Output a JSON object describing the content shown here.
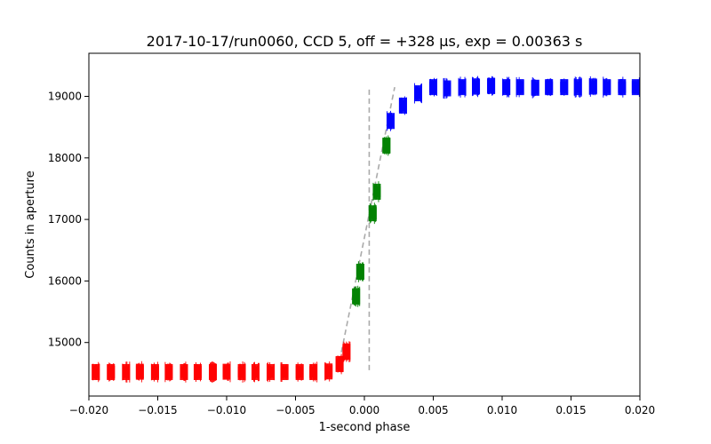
{
  "chart_data": {
    "type": "scatter",
    "title": "2017-10-17/run0060, CCD 5, off = +328 μs, exp = 0.00363 s",
    "xlabel": "1-second phase",
    "ylabel": "Counts in aperture",
    "xlim": [
      -0.02,
      0.02
    ],
    "ylim": [
      14130,
      19700
    ],
    "x_ticks": [
      -0.02,
      -0.015,
      -0.01,
      -0.005,
      0.0,
      0.005,
      0.01,
      0.015,
      0.02
    ],
    "x_tick_labels": [
      "−0.020",
      "−0.015",
      "−0.010",
      "−0.005",
      "0.000",
      "0.005",
      "0.010",
      "0.015",
      "0.020"
    ],
    "y_ticks": [
      15000,
      16000,
      17000,
      18000,
      19000
    ],
    "y_tick_labels": [
      "15000",
      "16000",
      "17000",
      "18000",
      "19000"
    ],
    "grid": false,
    "colors": {
      "low": "#ff0000",
      "transition": "#008000",
      "high": "#0000ff",
      "model": "#aaaaaa"
    },
    "series": [
      {
        "color_key": "low",
        "marker": "vertical-bar",
        "points": [
          {
            "x": -0.0195,
            "y": 14520
          },
          {
            "x": -0.0184,
            "y": 14520
          },
          {
            "x": -0.0173,
            "y": 14520
          },
          {
            "x": -0.0163,
            "y": 14525
          },
          {
            "x": -0.0152,
            "y": 14520
          },
          {
            "x": -0.0142,
            "y": 14520
          },
          {
            "x": -0.0131,
            "y": 14520
          },
          {
            "x": -0.0121,
            "y": 14520
          },
          {
            "x": -0.011,
            "y": 14520
          },
          {
            "x": -0.01,
            "y": 14525
          },
          {
            "x": -0.0089,
            "y": 14520
          },
          {
            "x": -0.0079,
            "y": 14520
          },
          {
            "x": -0.0068,
            "y": 14520
          },
          {
            "x": -0.0058,
            "y": 14520
          },
          {
            "x": -0.0047,
            "y": 14520
          },
          {
            "x": -0.0037,
            "y": 14520
          },
          {
            "x": -0.0026,
            "y": 14530
          },
          {
            "x": -0.0018,
            "y": 14650
          },
          {
            "x": -0.0013,
            "y": 14850
          }
        ]
      },
      {
        "color_key": "transition",
        "marker": "vertical-bar",
        "points": [
          {
            "x": -0.0006,
            "y": 15750
          },
          {
            "x": -0.0003,
            "y": 16150
          },
          {
            "x": 0.0006,
            "y": 17100
          },
          {
            "x": 0.0009,
            "y": 17450
          },
          {
            "x": 0.0016,
            "y": 18200
          }
        ]
      },
      {
        "color_key": "high",
        "marker": "vertical-bar",
        "points": [
          {
            "x": 0.0019,
            "y": 18600
          },
          {
            "x": 0.0028,
            "y": 18850
          },
          {
            "x": 0.0039,
            "y": 19050
          },
          {
            "x": 0.005,
            "y": 19150
          },
          {
            "x": 0.006,
            "y": 19130
          },
          {
            "x": 0.0071,
            "y": 19150
          },
          {
            "x": 0.0081,
            "y": 19160
          },
          {
            "x": 0.0092,
            "y": 19170
          },
          {
            "x": 0.0103,
            "y": 19150
          },
          {
            "x": 0.0113,
            "y": 19150
          },
          {
            "x": 0.0124,
            "y": 19140
          },
          {
            "x": 0.0134,
            "y": 19150
          },
          {
            "x": 0.0145,
            "y": 19150
          },
          {
            "x": 0.0155,
            "y": 19150
          },
          {
            "x": 0.0166,
            "y": 19160
          },
          {
            "x": 0.0176,
            "y": 19150
          },
          {
            "x": 0.0187,
            "y": 19150
          },
          {
            "x": 0.0197,
            "y": 19150
          }
        ]
      }
    ],
    "model_lines": [
      {
        "style": "dashed",
        "points": [
          {
            "x": -0.0018,
            "y": 14700
          },
          {
            "x": 0.0022,
            "y": 19150
          }
        ]
      },
      {
        "style": "dashed",
        "points": [
          {
            "x": 0.00035,
            "y": 14550
          },
          {
            "x": 0.00035,
            "y": 19150
          }
        ]
      }
    ]
  }
}
